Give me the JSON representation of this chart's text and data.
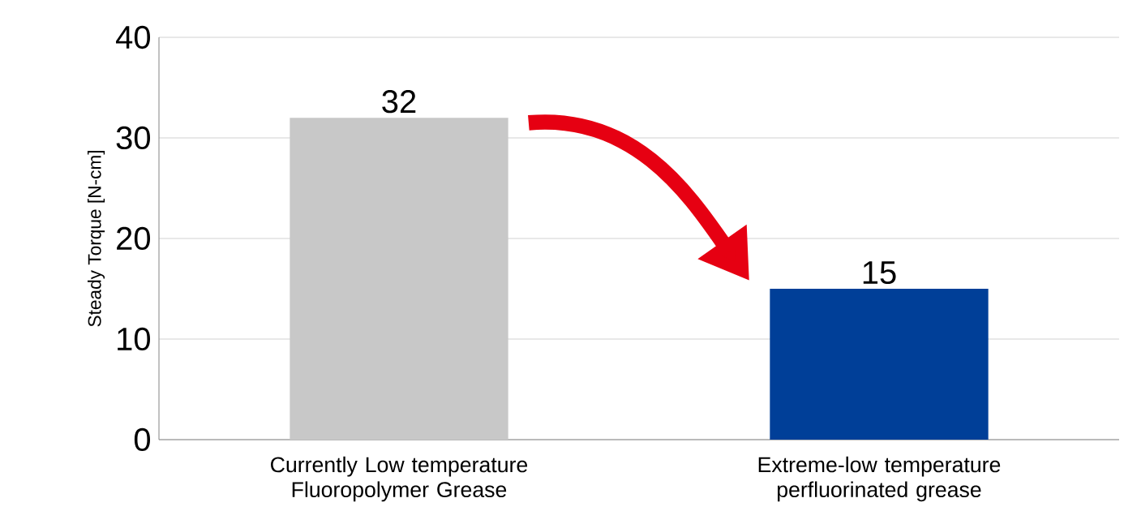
{
  "chart_data": {
    "type": "bar",
    "ylabel": "Steady Torque [N-cm]",
    "categories": [
      "Currently Low temperature Fluoropolymer Grease",
      "Extreme-low temperature perfluorinated grease"
    ],
    "values": [
      32,
      15
    ],
    "colors": [
      "#c8c8c8",
      "#003f98"
    ],
    "ylim": [
      0,
      40
    ],
    "yticks": [
      0,
      10,
      20,
      30,
      40
    ],
    "grid": "y",
    "data_labels": true
  }
}
